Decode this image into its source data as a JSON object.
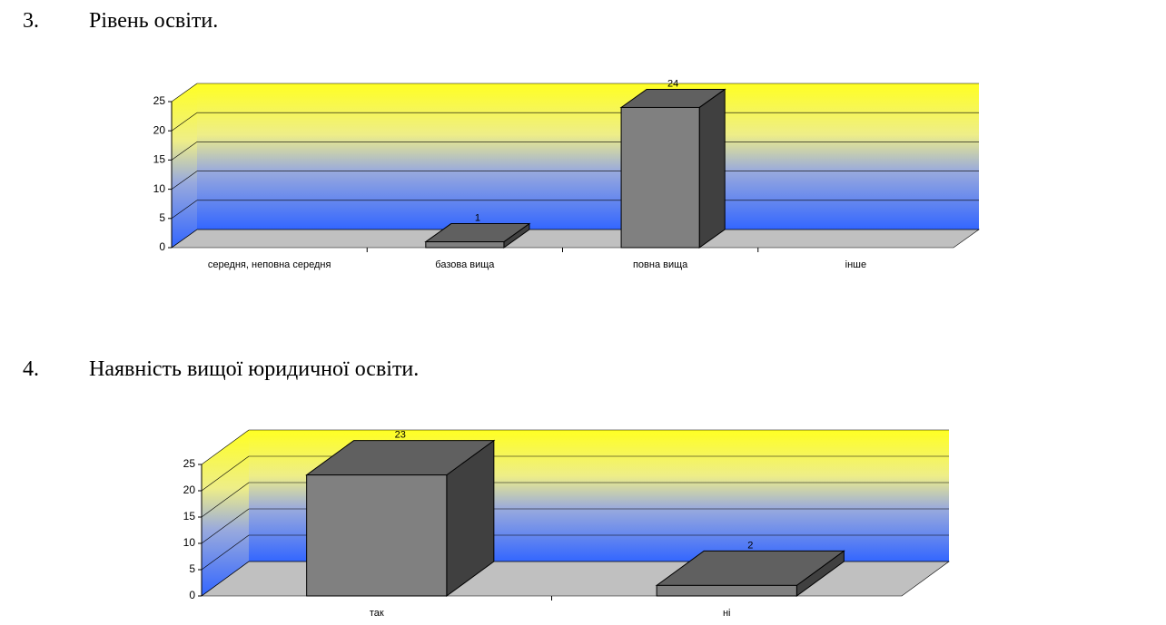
{
  "chart_data": [
    {
      "type": "bar3d",
      "number": "3.",
      "title": "Рівень освіти.",
      "categories": [
        "середня, неповна середня",
        "базова вища",
        "повна вища",
        "інше"
      ],
      "values": [
        null,
        1,
        24,
        null
      ],
      "ylim": [
        0,
        25
      ],
      "yticks": [
        0,
        5,
        10,
        15,
        20,
        25
      ],
      "grid": true,
      "color": "#808080"
    },
    {
      "type": "bar3d",
      "number": "4.",
      "title": "Наявність вищої юридичної освіти.",
      "categories": [
        "так",
        "ні"
      ],
      "values": [
        23,
        2
      ],
      "ylim": [
        0,
        25
      ],
      "yticks": [
        0,
        5,
        10,
        15,
        20,
        25
      ],
      "grid": true,
      "color": "#808080"
    }
  ]
}
